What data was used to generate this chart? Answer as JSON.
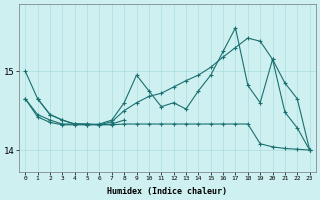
{
  "title": "",
  "xlabel": "Humidex (Indice chaleur)",
  "bg_color": "#cff0f0",
  "line_color": "#1a7070",
  "grid_color": "#aadddd",
  "x_values": [
    0,
    1,
    2,
    3,
    4,
    5,
    6,
    7,
    8,
    9,
    10,
    11,
    12,
    13,
    14,
    15,
    16,
    17,
    18,
    19,
    20,
    21,
    22,
    23
  ],
  "series1": [
    15.0,
    14.65,
    null,
    null,
    null,
    null,
    null,
    null,
    null,
    null,
    null,
    null,
    null,
    null,
    null,
    null,
    null,
    null,
    null,
    null,
    null,
    null,
    null,
    null
  ],
  "series2": [
    15.0,
    14.65,
    14.45,
    14.38,
    14.33,
    14.33,
    14.32,
    14.33,
    14.38,
    null,
    null,
    null,
    null,
    null,
    null,
    null,
    null,
    null,
    null,
    null,
    null,
    null,
    null,
    null
  ],
  "series3": [
    14.65,
    14.45,
    14.38,
    14.33,
    14.33,
    14.32,
    14.33,
    14.38,
    14.6,
    14.95,
    14.75,
    14.55,
    14.6,
    14.52,
    14.75,
    14.95,
    15.25,
    15.55,
    14.82,
    14.6,
    15.15,
    14.48,
    14.28,
    14.0
  ],
  "series4_x": [
    1,
    2,
    3,
    4,
    5,
    6,
    7,
    8,
    9,
    10,
    11,
    12,
    13,
    14,
    15,
    16,
    17,
    18,
    19,
    20,
    21,
    22,
    23
  ],
  "series4": [
    14.65,
    14.45,
    14.38,
    14.33,
    14.33,
    14.32,
    14.36,
    14.5,
    14.6,
    14.68,
    14.72,
    14.8,
    14.88,
    14.95,
    15.05,
    15.18,
    15.3,
    15.42,
    15.38,
    15.15,
    14.85,
    14.65,
    14.0
  ],
  "series5_x": [
    0,
    1,
    2,
    3,
    4,
    5,
    6,
    7,
    8,
    9,
    10,
    11,
    12,
    13,
    14,
    15,
    16,
    17,
    18,
    19,
    20,
    21,
    22,
    23
  ],
  "series5": [
    14.65,
    14.42,
    14.35,
    14.32,
    14.32,
    14.32,
    14.32,
    14.32,
    14.33,
    14.33,
    14.33,
    14.33,
    14.33,
    14.33,
    14.33,
    14.33,
    14.33,
    14.33,
    14.33,
    14.08,
    14.04,
    14.02,
    14.01,
    14.0
  ],
  "yticks": [
    14,
    15
  ],
  "ylim": [
    13.72,
    15.85
  ],
  "xlim": [
    -0.5,
    23.5
  ]
}
